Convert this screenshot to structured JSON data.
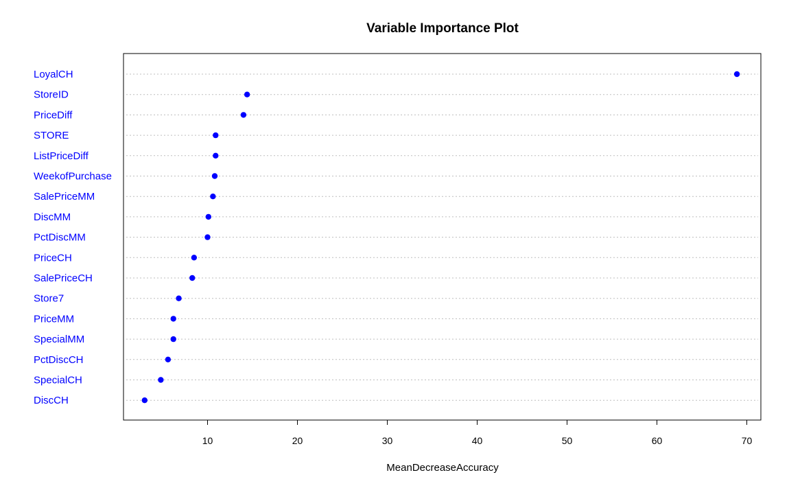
{
  "chart_data": {
    "type": "scatter",
    "title": "Variable Importance Plot",
    "xlabel": "MeanDecreaseAccuracy",
    "ylabel": "",
    "xlim": [
      0,
      71
    ],
    "xticks": [
      10,
      20,
      30,
      40,
      50,
      60,
      70
    ],
    "point_color": "#0000ff",
    "label_color": "#0000ff",
    "grid": "horizontal-dotted",
    "categories": [
      "LoyalCH",
      "StoreID",
      "PriceDiff",
      "STORE",
      "ListPriceDiff",
      "WeekofPurchase",
      "SalePriceMM",
      "DiscMM",
      "PctDiscMM",
      "PriceCH",
      "SalePriceCH",
      "Store7",
      "PriceMM",
      "SpecialMM",
      "PctDiscCH",
      "SpecialCH",
      "DiscCH"
    ],
    "values": [
      68.9,
      14.4,
      14.0,
      10.9,
      10.9,
      10.8,
      10.6,
      10.1,
      10.0,
      8.5,
      8.3,
      6.8,
      6.2,
      6.2,
      5.6,
      4.8,
      3.0
    ]
  }
}
